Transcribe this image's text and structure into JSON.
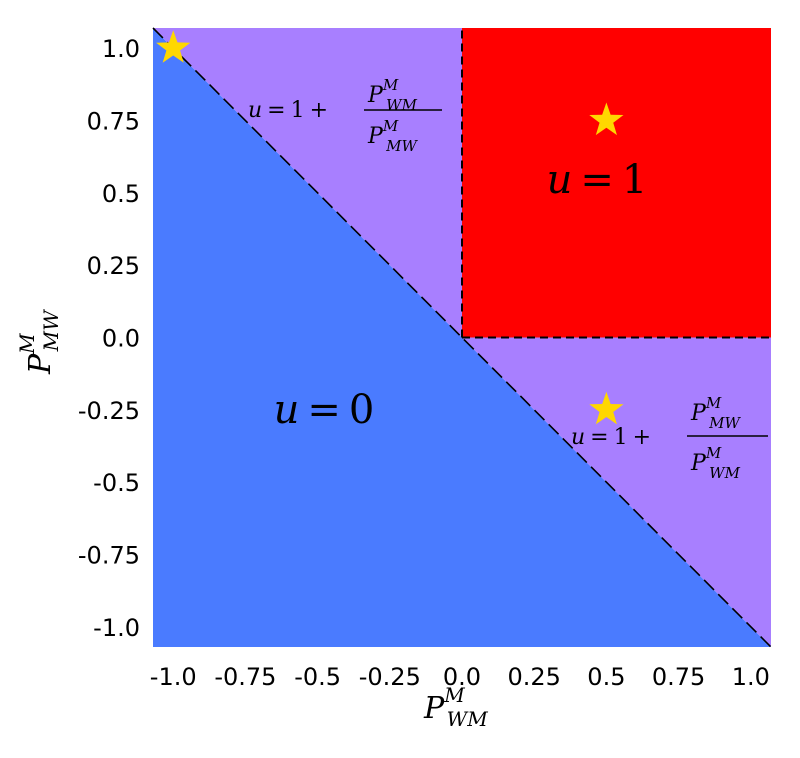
{
  "chart_data": {
    "type": "area",
    "title": "",
    "xlim": [
      -1.07,
      1.07
    ],
    "ylim": [
      -1.07,
      1.07
    ],
    "xticks": [
      -1.0,
      -0.75,
      -0.5,
      -0.25,
      0.0,
      0.25,
      0.5,
      0.75,
      1.0
    ],
    "yticks": [
      -1.0,
      -0.75,
      -0.5,
      -0.25,
      0.0,
      0.25,
      0.5,
      0.75,
      1.0
    ],
    "xtick_labels": [
      "-1.0",
      "-0.75",
      "-0.5",
      "-0.25",
      "0.0",
      "0.25",
      "0.5",
      "0.75",
      "1.0"
    ],
    "ytick_labels": [
      "-1.0",
      "-0.75",
      "-0.5",
      "-0.25",
      "0.0",
      "0.25",
      "0.5",
      "0.75",
      "1.0"
    ],
    "xlabel": {
      "base": "P",
      "sup": "M",
      "sub": "WM"
    },
    "ylabel": {
      "base": "P",
      "sup": "M",
      "sub": "MW"
    },
    "grid": false,
    "colors": {
      "u0": "#4a7bff",
      "mixed": "#a87fff",
      "u1": "#ff0000",
      "star": "#ffd700",
      "boundary": "#000000"
    },
    "regions": [
      {
        "id": "u0",
        "label": "u = 0",
        "condition": "x + y < 0"
      },
      {
        "id": "mixed-upper",
        "label": "u = 1 + P_WM^M / P_MW^M",
        "condition": "x + y >= 0, x < 0"
      },
      {
        "id": "u1",
        "label": "u = 1",
        "condition": "x >= 0, y >= 0"
      },
      {
        "id": "mixed-lower",
        "label": "u = 1 + P_MW^M / P_WM^M",
        "condition": "x + y >= 0, y < 0"
      }
    ],
    "boundaries": [
      {
        "from": [
          -1.07,
          1.07
        ],
        "to": [
          1.07,
          -1.07
        ]
      },
      {
        "from": [
          0.0,
          0.0
        ],
        "to": [
          0.0,
          1.07
        ]
      },
      {
        "from": [
          0.0,
          0.0
        ],
        "to": [
          1.07,
          0.0
        ]
      }
    ],
    "stars": [
      {
        "x": -1.0,
        "y": 1.0
      },
      {
        "x": 0.5,
        "y": 0.75
      },
      {
        "x": 0.5,
        "y": -0.25
      }
    ],
    "annotations": {
      "u0": {
        "lhs": "u",
        "eq": "=",
        "rhs": "0"
      },
      "u1": {
        "lhs": "u",
        "eq": "=",
        "rhs": "1"
      },
      "upper": {
        "lhs": "u",
        "eq": "=",
        "one": "1",
        "plus": "+",
        "num": {
          "base": "P",
          "sup": "M",
          "sub": "WM"
        },
        "den": {
          "base": "P",
          "sup": "M",
          "sub": "MW"
        }
      },
      "lower": {
        "lhs": "u",
        "eq": "=",
        "one": "1",
        "plus": "+",
        "num": {
          "base": "P",
          "sup": "M",
          "sub": "MW"
        },
        "den": {
          "base": "P",
          "sup": "M",
          "sub": "WM"
        }
      }
    }
  }
}
